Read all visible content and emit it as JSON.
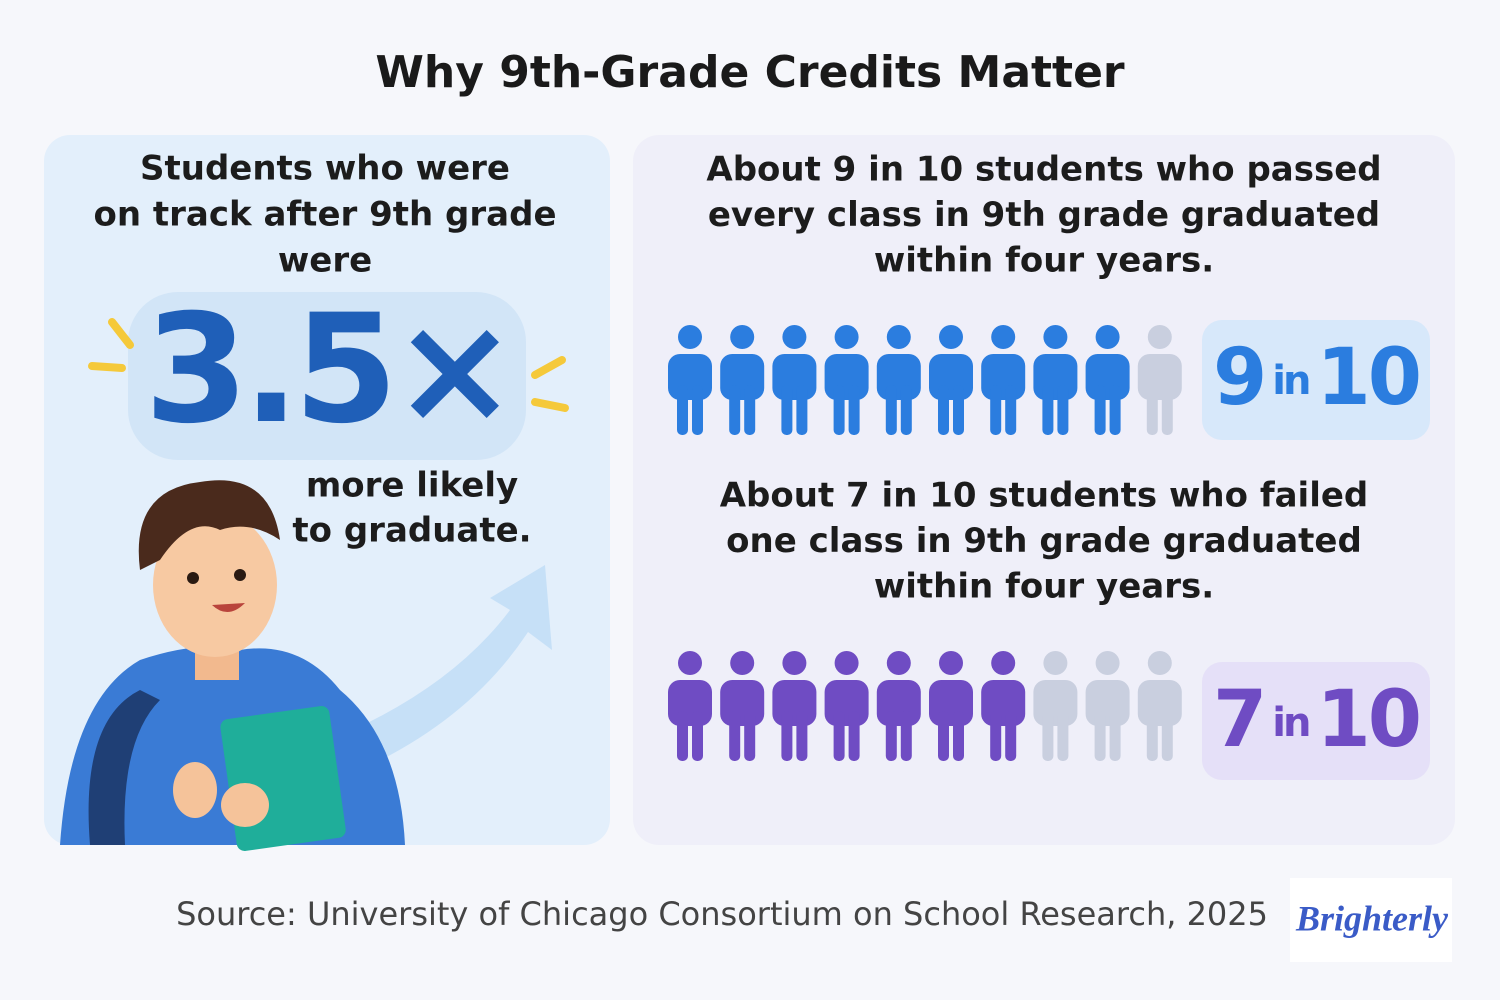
{
  "title": "Why 9th-Grade Credits Matter",
  "left_panel": {
    "heading_lines": [
      "Students who were",
      "on track after 9th grade",
      "were"
    ],
    "multiplier": "3.5×",
    "caption_lines": [
      "more likely",
      "to graduate."
    ]
  },
  "right_panel": {
    "stats": [
      {
        "text_lines": [
          "About 9 in 10 students who passed",
          "every class in 9th grade graduated",
          "within four years."
        ],
        "filled": 9,
        "total": 10,
        "joiner": "in",
        "color": "#2b7ddf",
        "badge_color": "#d7e8fa"
      },
      {
        "text_lines": [
          "About 7 in 10 students who failed",
          "one class in 9th grade graduated",
          "within four years."
        ],
        "filled": 7,
        "total": 10,
        "joiner": "in",
        "color": "#6f4cc3",
        "badge_color": "#e5e0f8"
      }
    ],
    "empty_color": "#c9cfdf"
  },
  "source": "Source: University of Chicago Consortium on School Research, 2025",
  "brand": "Brighterly"
}
